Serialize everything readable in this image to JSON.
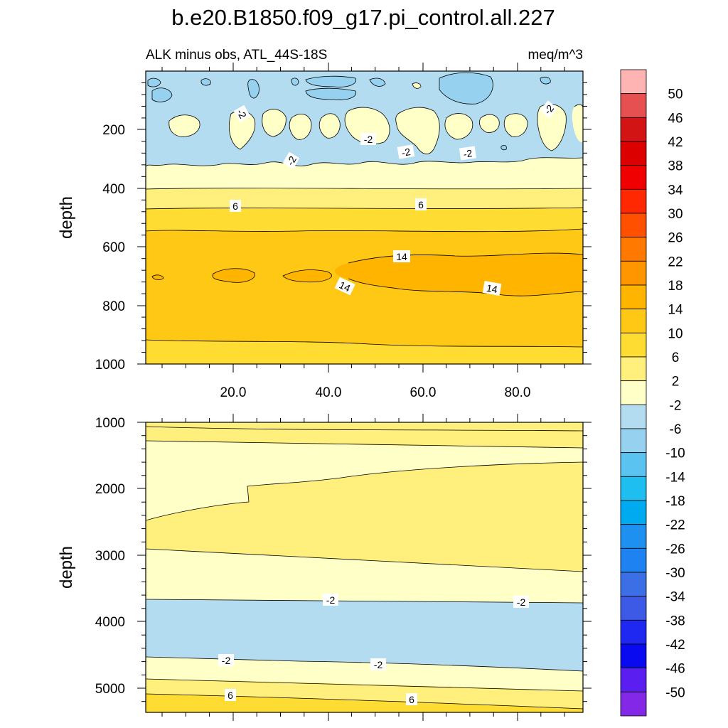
{
  "chart_data": {
    "type": "contour",
    "title": "b.e20.B1850.f09_g17.pi_control.all.227",
    "left_subtitle": "ALK minus obs, ATL_44S-18S",
    "right_subtitle": "meq/m^3",
    "colorbar": {
      "levels": [
        "50",
        "46",
        "42",
        "38",
        "34",
        "30",
        "26",
        "22",
        "18",
        "14",
        "10",
        "6",
        "2",
        "-2",
        "-6",
        "-10",
        "-14",
        "-18",
        "-22",
        "-26",
        "-30",
        "-34",
        "-38",
        "-42",
        "-46",
        "-50"
      ],
      "colors": [
        "#FFB4B4",
        "#E65050",
        "#D21414",
        "#DC0000",
        "#F00000",
        "#FF2800",
        "#FF5000",
        "#FF7800",
        "#FF9600",
        "#FFB400",
        "#FFC814",
        "#FFDC32",
        "#FFF07D",
        "#FFFFC8",
        "#B4DCF0",
        "#96D2F0",
        "#5AC3F0",
        "#1EBEF0",
        "#00AAF0",
        "#1E91F0",
        "#1E82F0",
        "#3C6EE6",
        "#3C5AE6",
        "#1E28F0",
        "#0A0AF0",
        "#5A1EF0",
        "#8228E6"
      ]
    },
    "panels": [
      {
        "name": "upper",
        "ylabel": "depth",
        "ylim": [
          0,
          1000
        ],
        "xlim": [
          0,
          93
        ],
        "yticks": [
          "200",
          "400",
          "600",
          "800",
          "1000"
        ],
        "xticks": [
          "20.0",
          "40.0",
          "60.0",
          "80.0"
        ],
        "contour_labels": [
          "-2",
          "-2",
          "-2",
          "-2",
          "-2",
          "-2",
          "6",
          "6",
          "14",
          "14",
          "14"
        ],
        "bands": [
          {
            "from_depth": 0,
            "to_depth": 300,
            "level_low": -6,
            "level_high": -2
          },
          {
            "from_depth": 300,
            "to_depth": 390,
            "level_low": -2,
            "level_high": 2
          },
          {
            "from_depth": 390,
            "to_depth": 465,
            "level_low": 2,
            "level_high": 6
          },
          {
            "from_depth": 465,
            "to_depth": 540,
            "level_low": 6,
            "level_high": 10
          },
          {
            "from_depth": 540,
            "to_depth": 920,
            "level_low": 10,
            "level_high": 14
          },
          {
            "from_depth": 650,
            "to_depth": 760,
            "level_low": 14,
            "level_high": 18
          },
          {
            "from_depth": 920,
            "to_depth": 1000,
            "level_low": 6,
            "level_high": 10
          }
        ]
      },
      {
        "name": "lower",
        "ylabel": "depth",
        "ylim": [
          1000,
          5350
        ],
        "xlim": [
          0,
          93
        ],
        "yticks": [
          "1000",
          "2000",
          "3000",
          "4000",
          "5000"
        ],
        "contour_labels": [
          "-2",
          "-2",
          "-2",
          "-2",
          "6",
          "6"
        ],
        "bands": [
          {
            "from_depth": 1000,
            "to_depth": 1350,
            "level_low": 2,
            "level_high": 6
          },
          {
            "from_depth": 1350,
            "to_depth": 2500,
            "level_low": -2,
            "level_high": 2
          },
          {
            "from_depth": 1700,
            "to_depth": 2900,
            "level_low": 2,
            "level_high": 6
          },
          {
            "from_depth": 2900,
            "to_depth": 3650,
            "level_low": -2,
            "level_high": 2
          },
          {
            "from_depth": 3650,
            "to_depth": 4600,
            "level_low": -6,
            "level_high": -2
          },
          {
            "from_depth": 4600,
            "to_depth": 5050,
            "level_low": -2,
            "level_high": 2
          },
          {
            "from_depth": 5050,
            "to_depth": 5350,
            "level_low": 2,
            "level_high": 6
          }
        ]
      }
    ]
  }
}
